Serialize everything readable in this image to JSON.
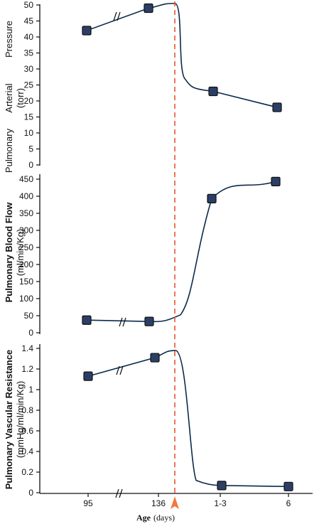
{
  "colors": {
    "curve": "#0c2a4a",
    "marker": "#2b3f66",
    "birth_line": "#e5572b"
  },
  "x_axis": {
    "ticks": [
      "95",
      "136",
      "1-3",
      "6"
    ],
    "label_bold": "Age",
    "label_normal": "(days)"
  },
  "chart_data": [
    {
      "type": "line",
      "ylabel_lines": [
        "Pulmonary",
        "Arterial",
        "(torr)",
        "Pressure"
      ],
      "ylim": [
        0,
        50
      ],
      "yticks": [
        0,
        5,
        10,
        15,
        20,
        25,
        30,
        35,
        40,
        45,
        50
      ],
      "categories": [
        "95",
        "136",
        "1-3",
        "6"
      ],
      "values": [
        42,
        49,
        23,
        18
      ]
    },
    {
      "type": "line",
      "ylabel_lines": [
        "Pulmonary Blood Flow",
        "(ml/min/Kg)"
      ],
      "ylim": [
        0,
        450
      ],
      "yticks": [
        0,
        50,
        100,
        150,
        200,
        250,
        300,
        350,
        400,
        450
      ],
      "categories": [
        "95",
        "136",
        "1-3",
        "6"
      ],
      "values": [
        37,
        33,
        393,
        443
      ]
    },
    {
      "type": "line",
      "ylabel_lines": [
        "Pulmonary Vascular Resistance",
        "(mmHg/ml/min/Kg)"
      ],
      "ylim": [
        0,
        1.4
      ],
      "yticks": [
        "0",
        "0.2",
        "0.4",
        "0.6",
        "0.8",
        "1",
        "1.2",
        "1.4"
      ],
      "categories": [
        "95",
        "136",
        "1-3",
        "6"
      ],
      "values": [
        1.13,
        1.31,
        0.07,
        0.06
      ]
    }
  ]
}
